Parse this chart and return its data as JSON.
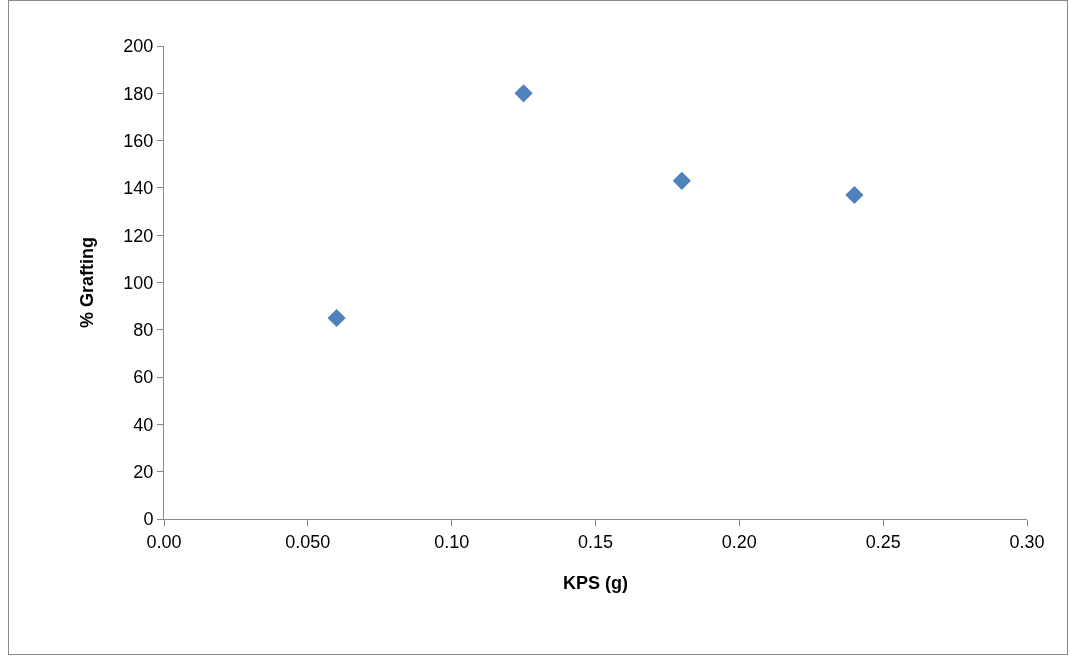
{
  "chart_data": {
    "type": "scatter",
    "xlabel": "KPS (g)",
    "ylabel": "% Grafting",
    "x": [
      0.06,
      0.125,
      0.18,
      0.24
    ],
    "values": [
      85,
      180,
      143,
      137
    ],
    "color": "#4f81bd",
    "marker": "diamond",
    "grid": false,
    "xlim": [
      0,
      0.3
    ],
    "xticks": [
      {
        "value": 0,
        "label": "0.00"
      },
      {
        "value": 0.05,
        "label": "0.050"
      },
      {
        "value": 0.1,
        "label": "0.10"
      },
      {
        "value": 0.15,
        "label": "0.15"
      },
      {
        "value": 0.2,
        "label": "0.20"
      },
      {
        "value": 0.25,
        "label": "0.25"
      },
      {
        "value": 0.3,
        "label": "0.30"
      }
    ],
    "ylim": [
      0,
      200
    ],
    "yticks": [
      0,
      20,
      40,
      60,
      80,
      100,
      120,
      140,
      160,
      180,
      200
    ]
  }
}
